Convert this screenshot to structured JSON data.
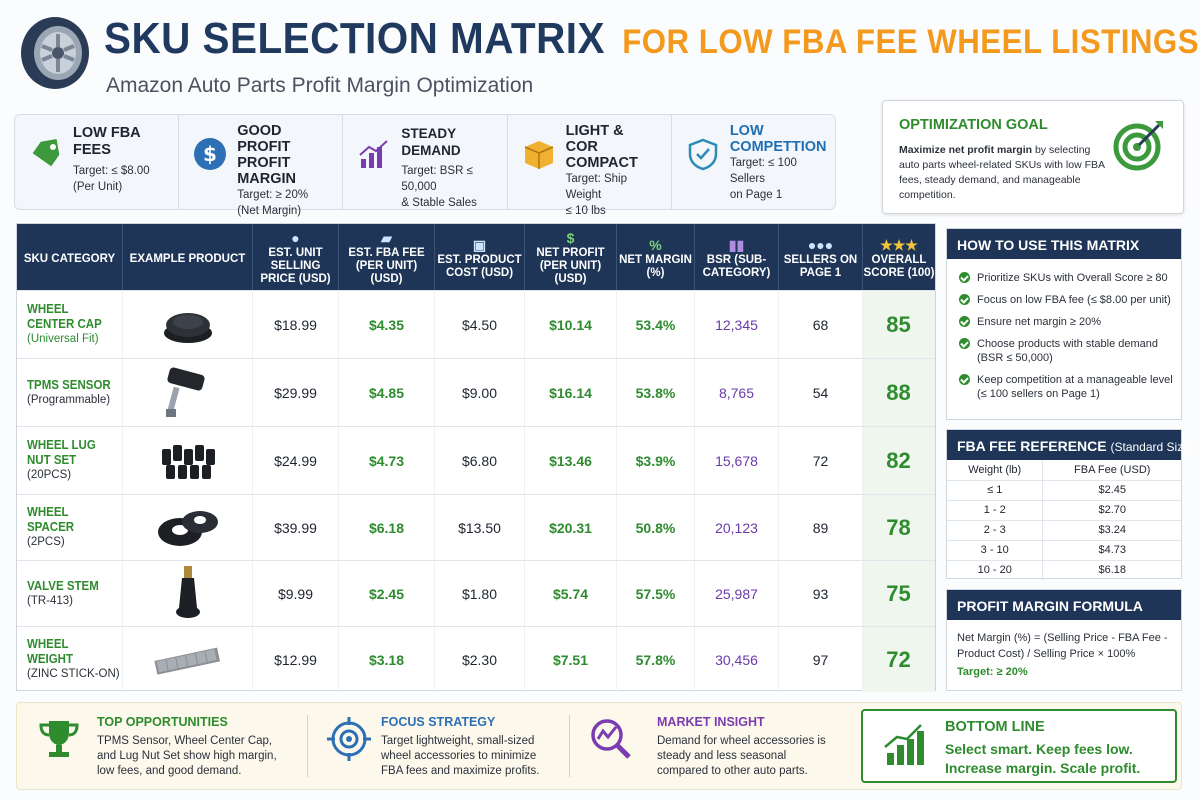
{
  "header": {
    "title": "SKU SELECTION MATRIX",
    "title_accent": "FOR LOW FBA FEE WHEEL LISTINGS",
    "subtitle": "Amazon Auto Parts Profit Margin Optimization"
  },
  "kpis": [
    {
      "title": "LOW FBA FEES",
      "line1": "Target: ≤ $8.00",
      "line2": "(Per Unit)",
      "icon": "tag-icon",
      "color": "#3c9a3c"
    },
    {
      "title": "GOOD PROFIT\nPROFIT MARGIN",
      "line1": "Target: ≥ 20%",
      "line2": "(Net Margin)",
      "icon": "dollar-icon",
      "color": "#2d6fb5"
    },
    {
      "title": "STEADY DEMAND",
      "line1": "Target: BSR ≤ 50,000",
      "line2": "& Stable Sales",
      "icon": "bar-chart-icon",
      "color": "#7a3cb0"
    },
    {
      "title": "LIGHT &\nCOR COMPACT",
      "line1": "Target: Ship Weight",
      "line2": "≤ 10 lbs",
      "icon": "box-icon",
      "color": "#e6a020"
    },
    {
      "title": "LOW\nCOMPETTION",
      "line1": "Target: ≤ 100 Sellers",
      "line2": "on Page 1",
      "icon": "shield-icon",
      "color": "#2d8cb5"
    }
  ],
  "goal": {
    "title": "OPTIMIZATION GOAL",
    "bold_lead": "Maximize net profit margin",
    "body": " by selecting auto parts wheel-related SKUs with low FBA fees, steady demand, and manageable competition."
  },
  "table": {
    "headers": [
      {
        "label": "SKU CATEGORY",
        "icon": ""
      },
      {
        "label": "EXAMPLE PRODUCT",
        "icon": ""
      },
      {
        "label": "EST. UNIT SELLING PRICE (USD)",
        "icon": "coins-icon"
      },
      {
        "label": "EST. FBA FEE (PER UNIT) (USD)",
        "icon": "truck-icon"
      },
      {
        "label": "EST. PRODUCT COST (USD)",
        "icon": "package-icon"
      },
      {
        "label": "NET PROFIT (PER UNIT) (USD)",
        "icon": "dollar-icon"
      },
      {
        "label": "NET MARGIN (%)",
        "icon": "percent-icon"
      },
      {
        "label": "BSR (SUB-CATEGORY)",
        "icon": "bar-chart-icon"
      },
      {
        "label": "SELLERS ON PAGE 1",
        "icon": "people-icon"
      },
      {
        "label": "OVERALL SCORE (100)",
        "icon": "stars-icon"
      }
    ],
    "rows": [
      {
        "name": "WHEEL CENTER CAP",
        "sub": "(Universal Fit)",
        "product": "center-cap",
        "price": "$18.99",
        "fee": "$4.35",
        "cost": "$4.50",
        "profit": "$10.14",
        "margin": "53.4%",
        "bsr": "12,345",
        "sellers": "68",
        "score": "85"
      },
      {
        "name": "TPMS SENSOR",
        "sub": "(Programmable)",
        "product": "tpms-sensor",
        "price": "$29.99",
        "fee": "$4.85",
        "cost": "$9.00",
        "profit": "$16.14",
        "margin": "53.8%",
        "bsr": "8,765",
        "sellers": "54",
        "score": "88"
      },
      {
        "name": "WHEEL LUG NUT SET",
        "sub": "(20PCS)",
        "product": "lug-nuts",
        "price": "$24.99",
        "fee": "$4.73",
        "cost": "$6.80",
        "profit": "$13.46",
        "margin": "$3.9%",
        "bsr": "15,678",
        "sellers": "72",
        "score": "82"
      },
      {
        "name": "WHEEL SPACER",
        "sub": "(2PCS)",
        "product": "spacer",
        "price": "$39.99",
        "fee": "$6.18",
        "cost": "$13.50",
        "profit": "$20.31",
        "margin": "50.8%",
        "bsr": "20,123",
        "sellers": "89",
        "score": "78"
      },
      {
        "name": "VALVE STEM",
        "sub": "(TR-413)",
        "product": "valve-stem",
        "price": "$9.99",
        "fee": "$2.45",
        "cost": "$1.80",
        "profit": "$5.74",
        "margin": "57.5%",
        "bsr": "25,987",
        "sellers": "93",
        "score": "75"
      },
      {
        "name": "WHEEL WEIGHT",
        "sub": "(ZINC STICK-ON)",
        "product": "wheel-weight",
        "price": "$12.99",
        "fee": "$3.18",
        "cost": "$2.30",
        "profit": "$7.51",
        "margin": "57.8%",
        "bsr": "30,456",
        "sellers": "97",
        "score": "72"
      }
    ]
  },
  "how_to": {
    "title": "HOW TO USE THIS MATRIX",
    "items": [
      "Prioritize SKUs with Overall Score ≥ 80",
      "Focus on low FBA fee (≤ $8.00 per unit)",
      "Ensure net margin ≥ 20%",
      "Choose products with stable demand (BSR ≤ 50,000)",
      "Keep competition at a manageable level (≤ 100 sellers on Page 1)"
    ]
  },
  "fee_ref": {
    "title": "FBA FEE REFERENCE",
    "title_suffix": "(Standard Size)",
    "col1": "Weight (lb)",
    "col2": "FBA Fee (USD)",
    "rows": [
      [
        "≤ 1",
        "$2.45"
      ],
      [
        "1 - 2",
        "$2.70"
      ],
      [
        "2 - 3",
        "$3.24"
      ],
      [
        "3 - 10",
        "$4.73"
      ],
      [
        "10 - 20",
        "$6.18"
      ]
    ]
  },
  "formula": {
    "title": "PROFIT MARGIN FORMULA",
    "body": "Net Margin (%) = (Selling Price - FBA Fee - Product Cost) / Selling Price × 100%",
    "target": "Target: ≥ 20%"
  },
  "bottom": {
    "sections": [
      {
        "title": "TOP OPPORTUNITIES",
        "body": "TPMS Sensor, Wheel Center Cap, and Lug Nut Set show high margin, low fees, and good demand.",
        "color": "#2e8b2e",
        "icon": "trophy-icon"
      },
      {
        "title": "FOCUS STRATEGY",
        "body": "Target lightweight, small-sized wheel accessories to minimize FBA fees and maximize profits.",
        "color": "#2d6fb5",
        "icon": "target-icon"
      },
      {
        "title": "MARKET INSIGHT",
        "body": "Demand for wheel accessories is steady and less seasonal compared to other auto parts.",
        "color": "#7a3cb0",
        "icon": "magnifier-chart-icon"
      }
    ],
    "bottom_line": {
      "title": "BOTTOM LINE",
      "line1": "Select smart. Keep fees low.",
      "line2": "Increase margin. Scale profit."
    }
  },
  "colors": {
    "navy": "#1e3558",
    "green": "#2e8b2e",
    "orange": "#f39a1e",
    "purple": "#6a3aa8"
  }
}
